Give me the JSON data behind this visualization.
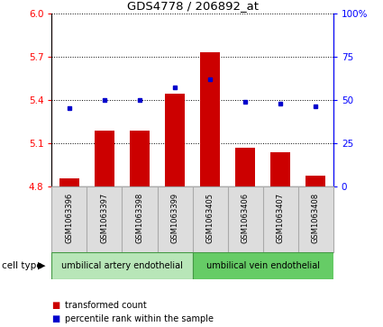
{
  "title": "GDS4778 / 206892_at",
  "samples": [
    "GSM1063396",
    "GSM1063397",
    "GSM1063398",
    "GSM1063399",
    "GSM1063405",
    "GSM1063406",
    "GSM1063407",
    "GSM1063408"
  ],
  "bar_values": [
    4.855,
    5.185,
    5.185,
    5.44,
    5.73,
    5.065,
    5.038,
    4.875
  ],
  "dot_values_pct": [
    45,
    50,
    50,
    57,
    62,
    49,
    48,
    46
  ],
  "ylim_left": [
    4.8,
    6.0
  ],
  "ylim_right": [
    0,
    100
  ],
  "yticks_left": [
    4.8,
    5.1,
    5.4,
    5.7,
    6.0
  ],
  "yticks_right": [
    0,
    25,
    50,
    75,
    100
  ],
  "bar_color": "#cc0000",
  "dot_color": "#0000cc",
  "groups": [
    {
      "label": "umbilical artery endothelial",
      "start": 0,
      "end": 4,
      "color": "#b8e6b8"
    },
    {
      "label": "umbilical vein endothelial",
      "start": 4,
      "end": 8,
      "color": "#66cc66"
    }
  ],
  "legend_items": [
    {
      "label": "transformed count",
      "color": "#cc0000"
    },
    {
      "label": "percentile rank within the sample",
      "color": "#0000cc"
    }
  ],
  "cell_type_label": "cell type"
}
